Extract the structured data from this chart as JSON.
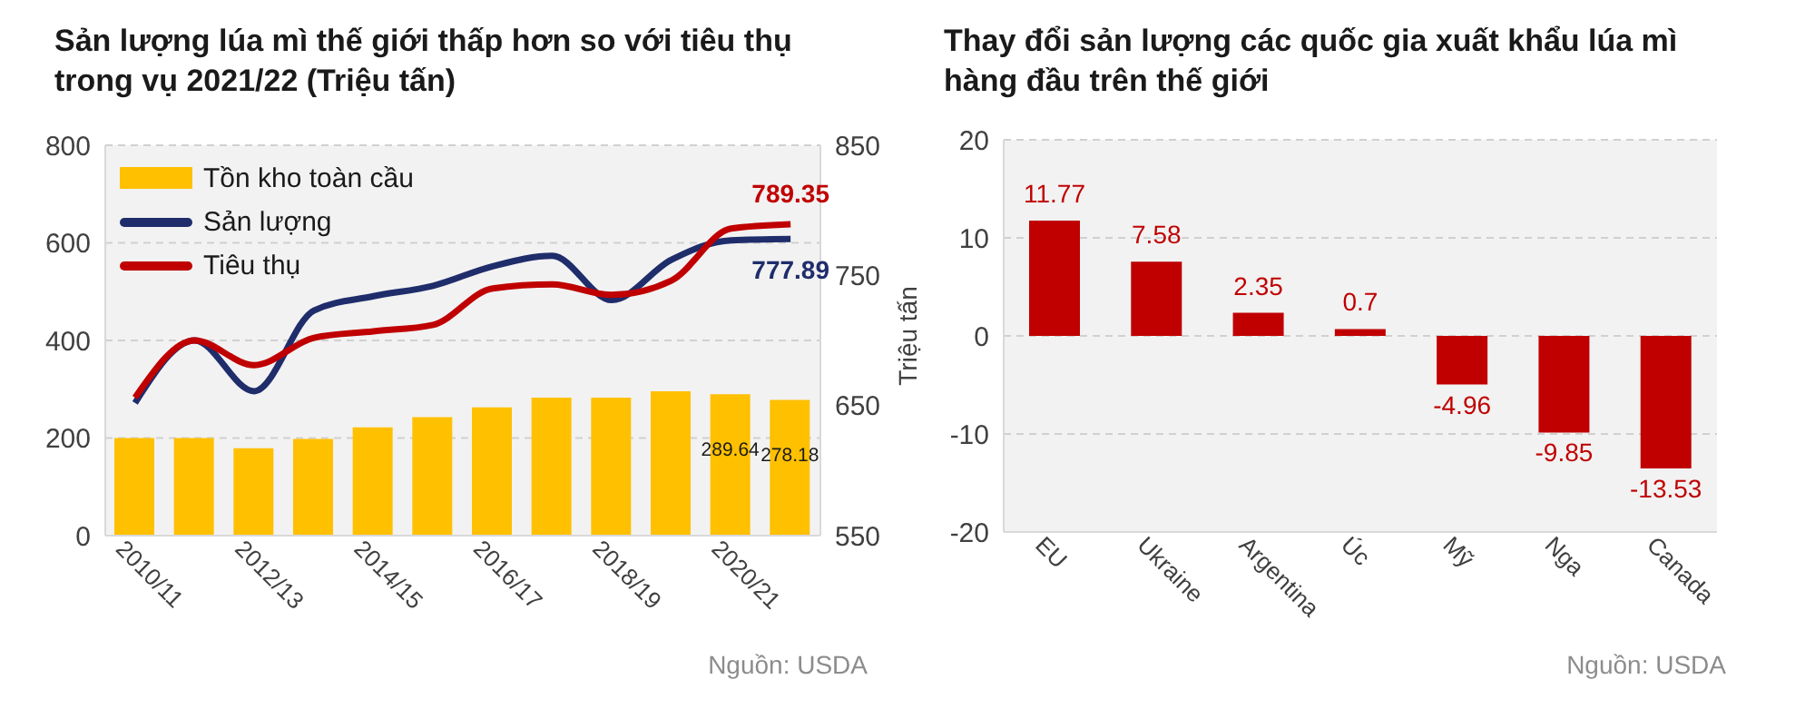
{
  "chart_data": [
    {
      "type": "bar",
      "title": "Sản lượng lúa mì thế giới thấp hơn so với tiêu thụ trong vụ 2021/22 (Triệu tấn)",
      "categories": [
        "2010/11",
        null,
        "2012/13",
        null,
        "2014/15",
        null,
        "2016/17",
        null,
        "2018/19",
        null,
        "2020/21",
        null
      ],
      "series": [
        {
          "name": "Tồn kho toàn cầu",
          "color": "#ffc000",
          "values": [
            200,
            200,
            179,
            198,
            222,
            243,
            263,
            283,
            283,
            296,
            289.64,
            278.18
          ],
          "value_labels": [
            null,
            null,
            null,
            null,
            null,
            null,
            null,
            null,
            null,
            null,
            "289.64",
            "278.18"
          ]
        },
        {
          "name": "Sản lượng",
          "type": "line",
          "axis": "y2",
          "color": "#1f2d6b",
          "values": [
            652,
            700,
            661,
            723,
            734,
            742,
            757,
            765,
            731,
            762,
            777,
            777.89
          ],
          "value_labels": [
            null,
            null,
            null,
            null,
            null,
            null,
            null,
            null,
            null,
            null,
            null,
            "777.89"
          ]
        },
        {
          "name": "Tiêu thụ",
          "type": "line",
          "axis": "y2",
          "color": "#c00000",
          "values": [
            656,
            700,
            681,
            702,
            707,
            712,
            740,
            743,
            735,
            746,
            786,
            789.35
          ],
          "value_labels": [
            null,
            null,
            null,
            null,
            null,
            null,
            null,
            null,
            null,
            null,
            null,
            "789.35"
          ]
        }
      ],
      "ylim": [
        0,
        800
      ],
      "yticks": [
        0,
        200,
        400,
        600,
        800
      ],
      "y2lim": [
        550,
        850
      ],
      "y2ticks": [
        550,
        650,
        750,
        850
      ],
      "grid": "y",
      "legend": "top left",
      "annotations": [
        "Nguồn: USDA"
      ]
    },
    {
      "type": "bar",
      "title": "Thay đổi sản lượng các quốc gia xuất khẩu lúa mì hàng đầu trên thế giới",
      "categories": [
        "EU",
        "Ukraine",
        "Argentina",
        "Úc",
        "Mỹ",
        "Nga",
        "Canada"
      ],
      "values": [
        11.77,
        7.58,
        2.35,
        0.7,
        -4.96,
        -9.85,
        -13.53
      ],
      "color": "#c00000",
      "data_labels": true,
      "ylabel": "Triệu tấn",
      "ylim": [
        -20,
        20
      ],
      "yticks": [
        -20,
        -10,
        0,
        10,
        20
      ],
      "grid": "y",
      "annotations": [
        "Nguồn: USDA"
      ]
    }
  ]
}
